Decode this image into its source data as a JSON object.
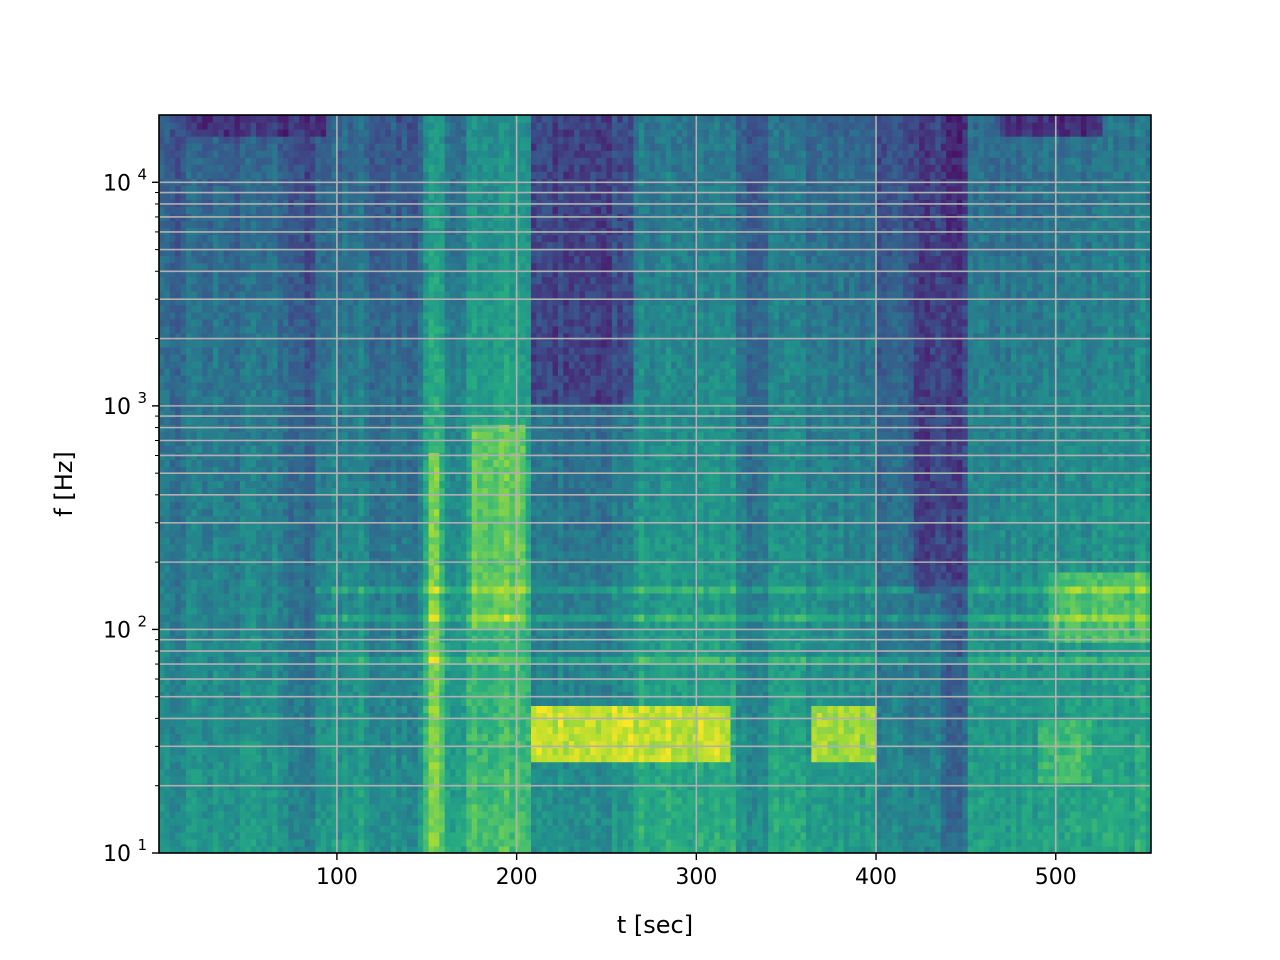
{
  "chart_data": {
    "type": "heatmap",
    "title": "",
    "xlabel": "t [sec]",
    "ylabel": "f [Hz]",
    "xlim": [
      1,
      553
    ],
    "ylim": [
      10,
      20000
    ],
    "yscale": "log",
    "grid": true,
    "grid_color": "#b0b0b0",
    "colormap": "viridis",
    "x_ticks": [
      100,
      200,
      300,
      400,
      500
    ],
    "x_tick_labels": [
      "100",
      "200",
      "300",
      "400",
      "500"
    ],
    "y_major_ticks": [
      10,
      100,
      1000,
      10000
    ],
    "y_tick_labels": [
      {
        "base": "10",
        "exp": "1"
      },
      {
        "base": "10",
        "exp": "2"
      },
      {
        "base": "10",
        "exp": "3"
      },
      {
        "base": "10",
        "exp": "4"
      }
    ],
    "y_minor_ticks": [
      20,
      30,
      40,
      50,
      60,
      70,
      80,
      90,
      200,
      300,
      400,
      500,
      600,
      700,
      800,
      900,
      2000,
      3000,
      4000,
      5000,
      6000,
      7000,
      8000,
      9000
    ],
    "time_segments": [
      {
        "t": [
          1,
          15
        ],
        "level": 0.38
      },
      {
        "t": [
          15,
          72
        ],
        "level": 0.42
      },
      {
        "t": [
          72,
          88
        ],
        "level": 0.33
      },
      {
        "t": [
          88,
          118
        ],
        "level": 0.45
      },
      {
        "t": [
          118,
          148
        ],
        "level": 0.4
      },
      {
        "t": [
          148,
          160
        ],
        "level": 0.62
      },
      {
        "t": [
          160,
          172
        ],
        "level": 0.48
      },
      {
        "t": [
          172,
          208
        ],
        "level": 0.6
      },
      {
        "t": [
          208,
          265
        ],
        "level": 0.4
      },
      {
        "t": [
          265,
          322
        ],
        "level": 0.52
      },
      {
        "t": [
          322,
          340
        ],
        "level": 0.4
      },
      {
        "t": [
          340,
          360
        ],
        "level": 0.5
      },
      {
        "t": [
          360,
          400
        ],
        "level": 0.44
      },
      {
        "t": [
          400,
          435
        ],
        "level": 0.36
      },
      {
        "t": [
          435,
          452
        ],
        "level": 0.24
      },
      {
        "t": [
          452,
          490
        ],
        "level": 0.46
      },
      {
        "t": [
          490,
          553
        ],
        "level": 0.5
      }
    ],
    "dark_regions": [
      {
        "t": [
          208,
          265
        ],
        "f": [
          1000,
          20000
        ],
        "level": 0.22
      },
      {
        "t": [
          420,
          452
        ],
        "f": [
          150,
          20000
        ],
        "level": 0.2
      },
      {
        "t": [
          15,
          95
        ],
        "f": [
          16000,
          20000
        ],
        "level": 0.16
      },
      {
        "t": [
          470,
          525
        ],
        "f": [
          16000,
          20000
        ],
        "level": 0.17
      }
    ],
    "bright_regions": [
      {
        "t": [
          208,
          320
        ],
        "f": [
          25,
          45
        ],
        "level": 0.92
      },
      {
        "t": [
          365,
          400
        ],
        "f": [
          25,
          45
        ],
        "level": 0.85
      },
      {
        "t": [
          175,
          205
        ],
        "f": [
          100,
          800
        ],
        "level": 0.75
      },
      {
        "t": [
          495,
          553
        ],
        "f": [
          90,
          180
        ],
        "level": 0.72
      },
      {
        "t": [
          152,
          158
        ],
        "f": [
          10,
          600
        ],
        "level": 0.78
      },
      {
        "t": [
          490,
          520
        ],
        "f": [
          20,
          40
        ],
        "level": 0.7
      }
    ],
    "harmonic_lines_hz": [
      37,
      75,
      112,
      150,
      260,
      300
    ]
  }
}
